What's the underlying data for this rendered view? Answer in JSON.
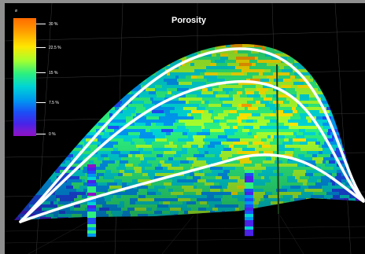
{
  "title": "Porosity",
  "legend": {
    "symbol": "ø",
    "ticks": [
      {
        "label": "30 %",
        "value": 30
      },
      {
        "label": "22.5 %",
        "value": 22.5
      },
      {
        "label": "15 %",
        "value": 15
      },
      {
        "label": "7.5 %",
        "value": 7.5
      },
      {
        "label": "0 %",
        "value": 0
      }
    ],
    "range": [
      0,
      30
    ]
  },
  "horizons": [
    "top",
    "middle",
    "base"
  ],
  "wells": [
    "well-left",
    "well-center",
    "well-right"
  ],
  "colors": {
    "background": "#8f8f8f",
    "scene": "#000000",
    "horizon_line": "#ffffff",
    "colormap": [
      "#8d11c6",
      "#4a22e8",
      "#1c4ef5",
      "#0096f0",
      "#00d4d4",
      "#2cf07f",
      "#a6ff2e",
      "#ffe600",
      "#ffa200",
      "#ff6a00"
    ]
  }
}
